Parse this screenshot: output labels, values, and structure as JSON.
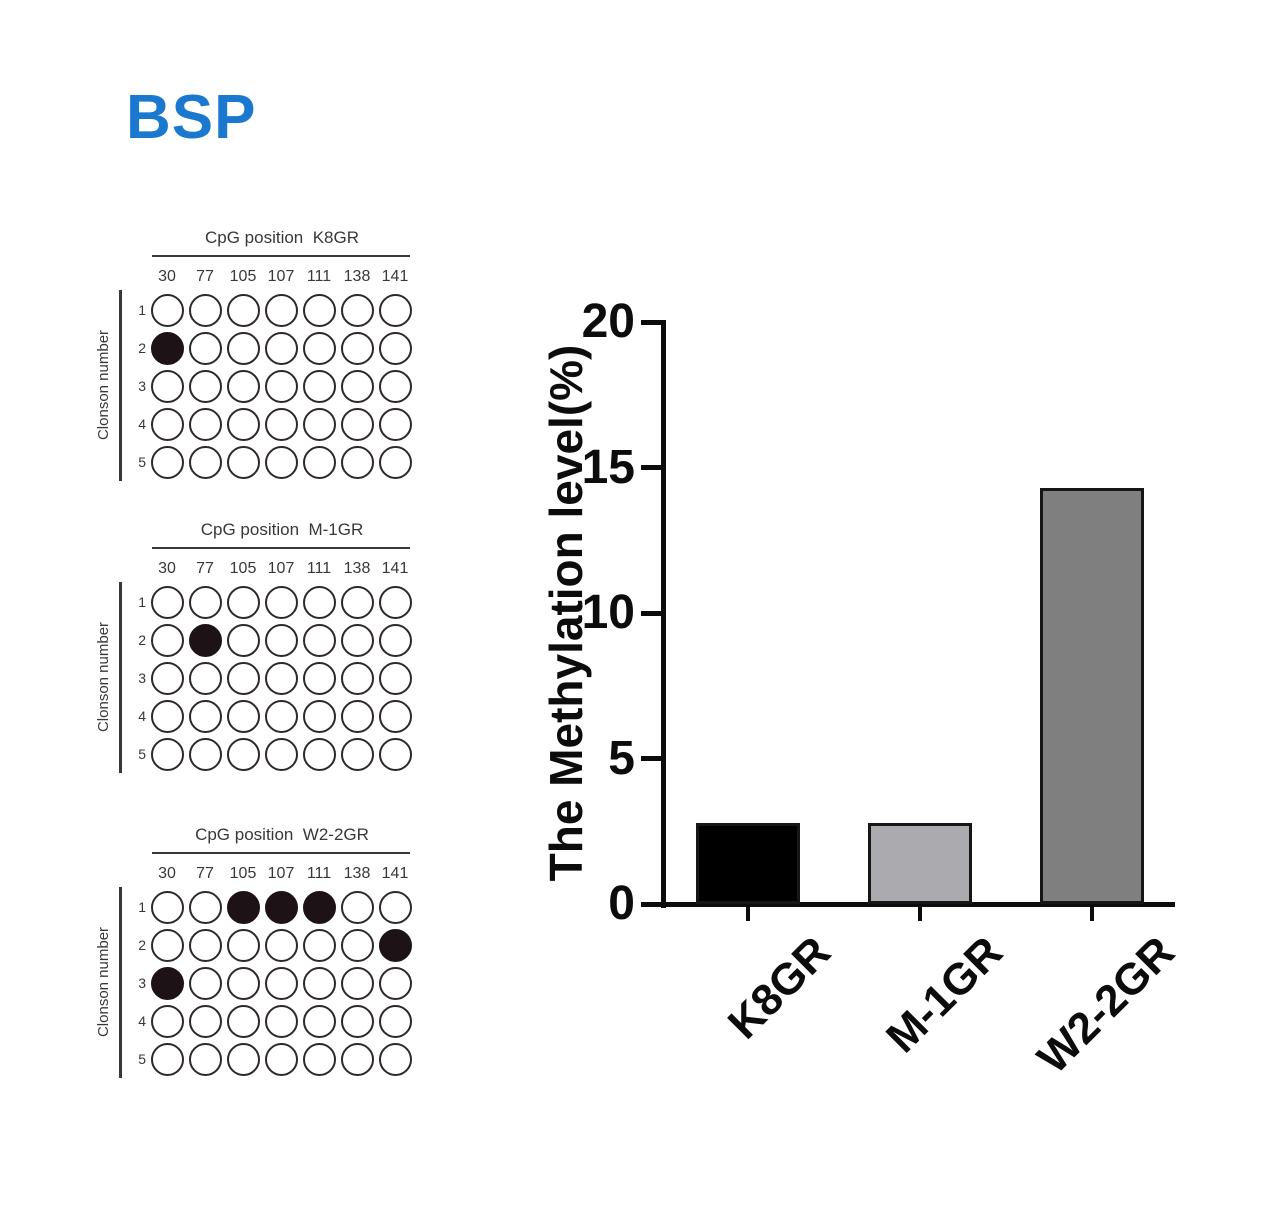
{
  "page": {
    "title": "BSP",
    "title_color": "#1a79cf",
    "background": "#ffffff"
  },
  "dot_panels": {
    "title_prefix": "CpG position",
    "ylabel": "Clonson number",
    "columns": [
      "30",
      "77",
      "105",
      "107",
      "111",
      "138",
      "141"
    ],
    "row_labels": [
      "1",
      "2",
      "3",
      "4",
      "5"
    ],
    "dot_filled_color": "#1d1316",
    "panels": [
      {
        "label": "K8GR",
        "filled": [
          [
            0,
            0,
            0,
            0,
            0,
            0,
            0
          ],
          [
            1,
            0,
            0,
            0,
            0,
            0,
            0
          ],
          [
            0,
            0,
            0,
            0,
            0,
            0,
            0
          ],
          [
            0,
            0,
            0,
            0,
            0,
            0,
            0
          ],
          [
            0,
            0,
            0,
            0,
            0,
            0,
            0
          ]
        ]
      },
      {
        "label": "M-1GR",
        "filled": [
          [
            0,
            0,
            0,
            0,
            0,
            0,
            0
          ],
          [
            0,
            1,
            0,
            0,
            0,
            0,
            0
          ],
          [
            0,
            0,
            0,
            0,
            0,
            0,
            0
          ],
          [
            0,
            0,
            0,
            0,
            0,
            0,
            0
          ],
          [
            0,
            0,
            0,
            0,
            0,
            0,
            0
          ]
        ]
      },
      {
        "label": "W2-2GR",
        "filled": [
          [
            0,
            0,
            1,
            1,
            1,
            0,
            0
          ],
          [
            0,
            0,
            0,
            0,
            0,
            0,
            1
          ],
          [
            1,
            0,
            0,
            0,
            0,
            0,
            0
          ],
          [
            0,
            0,
            0,
            0,
            0,
            0,
            0
          ],
          [
            0,
            0,
            0,
            0,
            0,
            0,
            0
          ]
        ]
      }
    ]
  },
  "chart_data": {
    "type": "bar",
    "categories": [
      "K8GR",
      "M-1GR",
      "W2-2GR"
    ],
    "values": [
      2.8,
      2.8,
      14.3
    ],
    "bar_colors": [
      "#000000",
      "#ababaf",
      "#7f7f7f"
    ],
    "title": "",
    "xlabel": "",
    "ylabel": "The Methylation level(%)",
    "yticks": [
      0,
      5,
      10,
      15,
      20
    ],
    "ylim": [
      0,
      20
    ],
    "grid": false,
    "legend": "none",
    "axis_color": "#0c0c0c"
  }
}
